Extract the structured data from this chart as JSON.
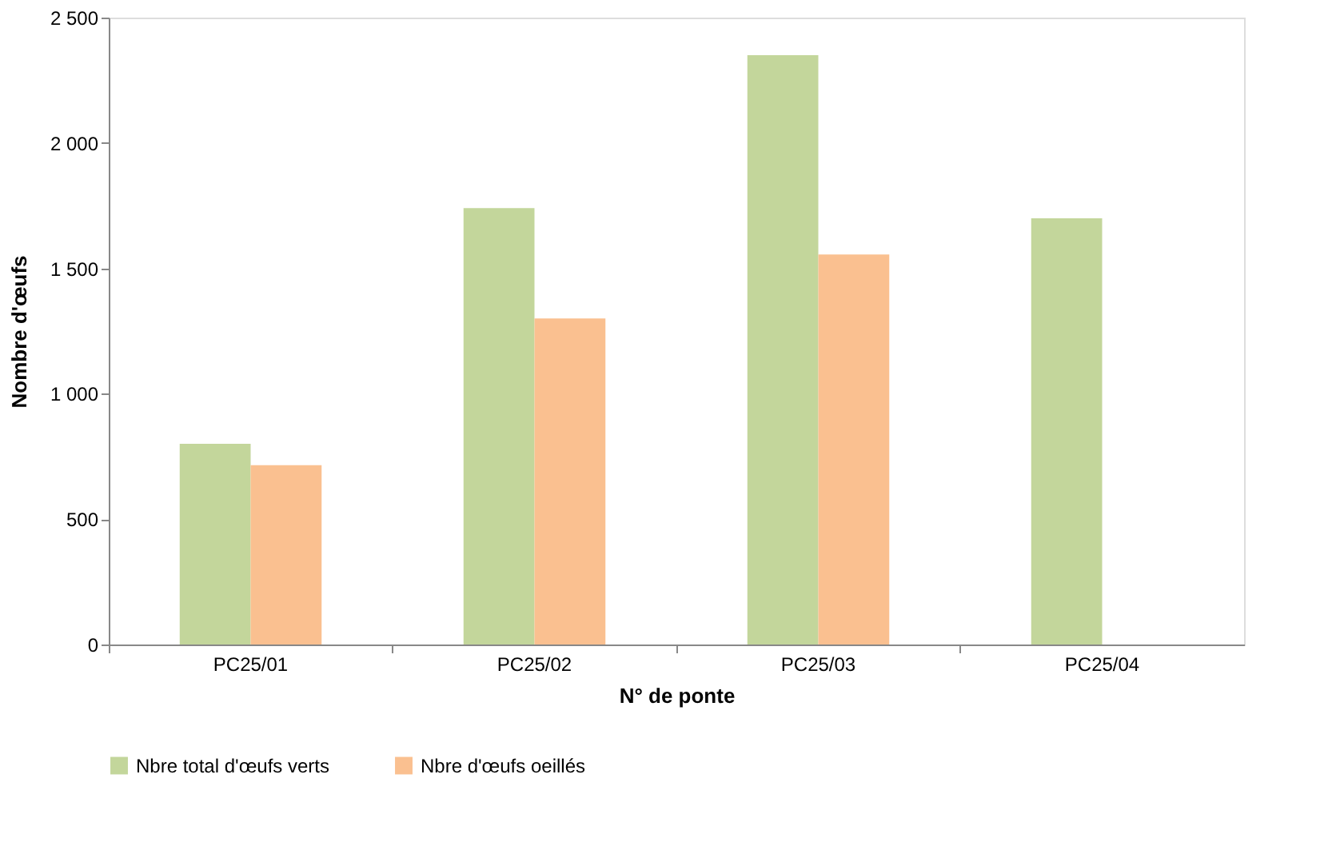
{
  "chart_data": {
    "type": "bar",
    "xlabel": "N° de ponte",
    "ylabel": "Nombre d'œufs",
    "categories": [
      "PC25/01",
      "PC25/02",
      "PC25/03",
      "PC25/04"
    ],
    "series": [
      {
        "name": "Nbre total d'œufs verts",
        "color": "#c3d69b",
        "values": [
          800,
          1740,
          2350,
          1700
        ]
      },
      {
        "name": "Nbre d'œufs oeillés",
        "color": "#fac090",
        "values": [
          715,
          1300,
          1555,
          null
        ]
      }
    ],
    "ylim": [
      0,
      2500
    ],
    "yticks": [
      0,
      {
        "value": 500,
        "label": "500"
      },
      {
        "value": 1000,
        "label": "1 000"
      },
      {
        "value": 1500,
        "label": "1 500"
      },
      {
        "value": 2000,
        "label": "2 000"
      },
      {
        "value": 2500,
        "label": "2 500"
      }
    ],
    "grid": false,
    "legend": "bottom"
  }
}
